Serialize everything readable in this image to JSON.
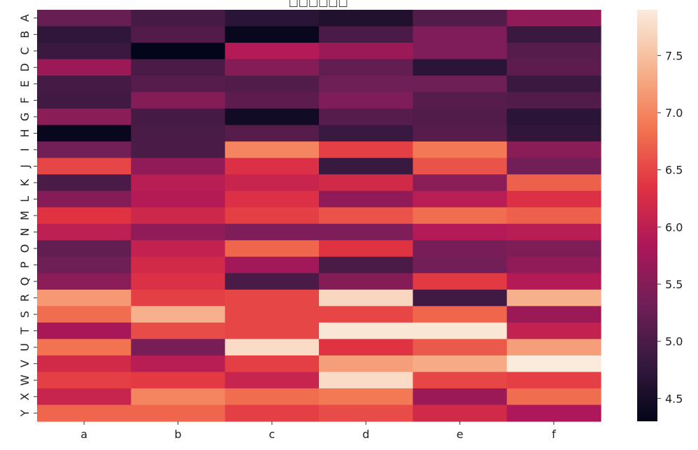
{
  "chart_data": {
    "type": "heatmap",
    "title": "□□□□□□",
    "x_categories": [
      "a",
      "b",
      "c",
      "d",
      "e",
      "f"
    ],
    "y_categories": [
      "A",
      "B",
      "C",
      "D",
      "E",
      "F",
      "G",
      "H",
      "I",
      "J",
      "K",
      "L",
      "M",
      "N",
      "O",
      "P",
      "Q",
      "R",
      "S",
      "T",
      "U",
      "V",
      "W",
      "X",
      "Y"
    ],
    "values": [
      [
        5.25,
        4.95,
        4.7,
        4.6,
        5.05,
        5.6
      ],
      [
        4.75,
        5.05,
        4.35,
        5.0,
        5.45,
        4.85
      ],
      [
        4.85,
        4.3,
        5.9,
        5.7,
        5.45,
        5.1
      ],
      [
        5.7,
        5.0,
        5.5,
        5.2,
        4.7,
        5.15
      ],
      [
        4.95,
        5.1,
        5.05,
        5.3,
        5.3,
        4.85
      ],
      [
        4.9,
        5.5,
        5.15,
        5.45,
        5.1,
        5.05
      ],
      [
        5.55,
        4.95,
        4.45,
        5.1,
        5.05,
        4.7
      ],
      [
        4.35,
        5.0,
        5.1,
        4.85,
        5.1,
        4.75
      ],
      [
        5.35,
        5.0,
        7.0,
        6.45,
        6.9,
        5.55
      ],
      [
        6.5,
        5.6,
        6.3,
        4.85,
        6.6,
        5.35
      ],
      [
        5.0,
        5.95,
        6.1,
        6.2,
        5.55,
        6.7
      ],
      [
        5.5,
        5.9,
        6.3,
        5.6,
        5.95,
        6.3
      ],
      [
        6.35,
        6.15,
        6.45,
        6.6,
        6.8,
        6.7
      ],
      [
        6.0,
        5.6,
        5.45,
        5.45,
        5.9,
        5.95
      ],
      [
        5.2,
        6.05,
        6.75,
        6.35,
        5.4,
        5.45
      ],
      [
        5.3,
        6.2,
        5.75,
        5.0,
        5.35,
        5.6
      ],
      [
        5.55,
        6.3,
        5.0,
        5.5,
        6.4,
        5.9
      ],
      [
        7.15,
        6.45,
        6.5,
        7.7,
        4.9,
        7.35
      ],
      [
        6.8,
        7.35,
        6.5,
        6.5,
        6.75,
        5.7
      ],
      [
        5.8,
        6.55,
        6.5,
        7.85,
        7.85,
        6.05
      ],
      [
        6.85,
        5.4,
        7.75,
        6.35,
        6.65,
        7.2
      ],
      [
        6.2,
        5.95,
        6.45,
        7.2,
        7.3,
        7.9
      ],
      [
        6.45,
        6.4,
        6.1,
        7.75,
        6.5,
        6.45
      ],
      [
        6.1,
        7.0,
        6.8,
        6.9,
        5.7,
        6.8
      ],
      [
        6.75,
        6.75,
        6.45,
        6.55,
        6.2,
        5.85
      ]
    ],
    "colorbar": {
      "min": 4.3,
      "max": 7.9,
      "ticks": [
        4.5,
        5.0,
        5.5,
        6.0,
        6.5,
        7.0,
        7.5
      ],
      "tick_labels": [
        "4.5",
        "5.0",
        "5.5",
        "6.0",
        "6.5",
        "7.0",
        "7.5"
      ]
    },
    "colormap": "rocket",
    "colormap_stops": [
      "#03051a",
      "#36193e",
      "#701f57",
      "#ad1759",
      "#e13342",
      "#f37651",
      "#f6b48f",
      "#faebdd"
    ],
    "grid": false,
    "legend": "colorbar-right"
  }
}
